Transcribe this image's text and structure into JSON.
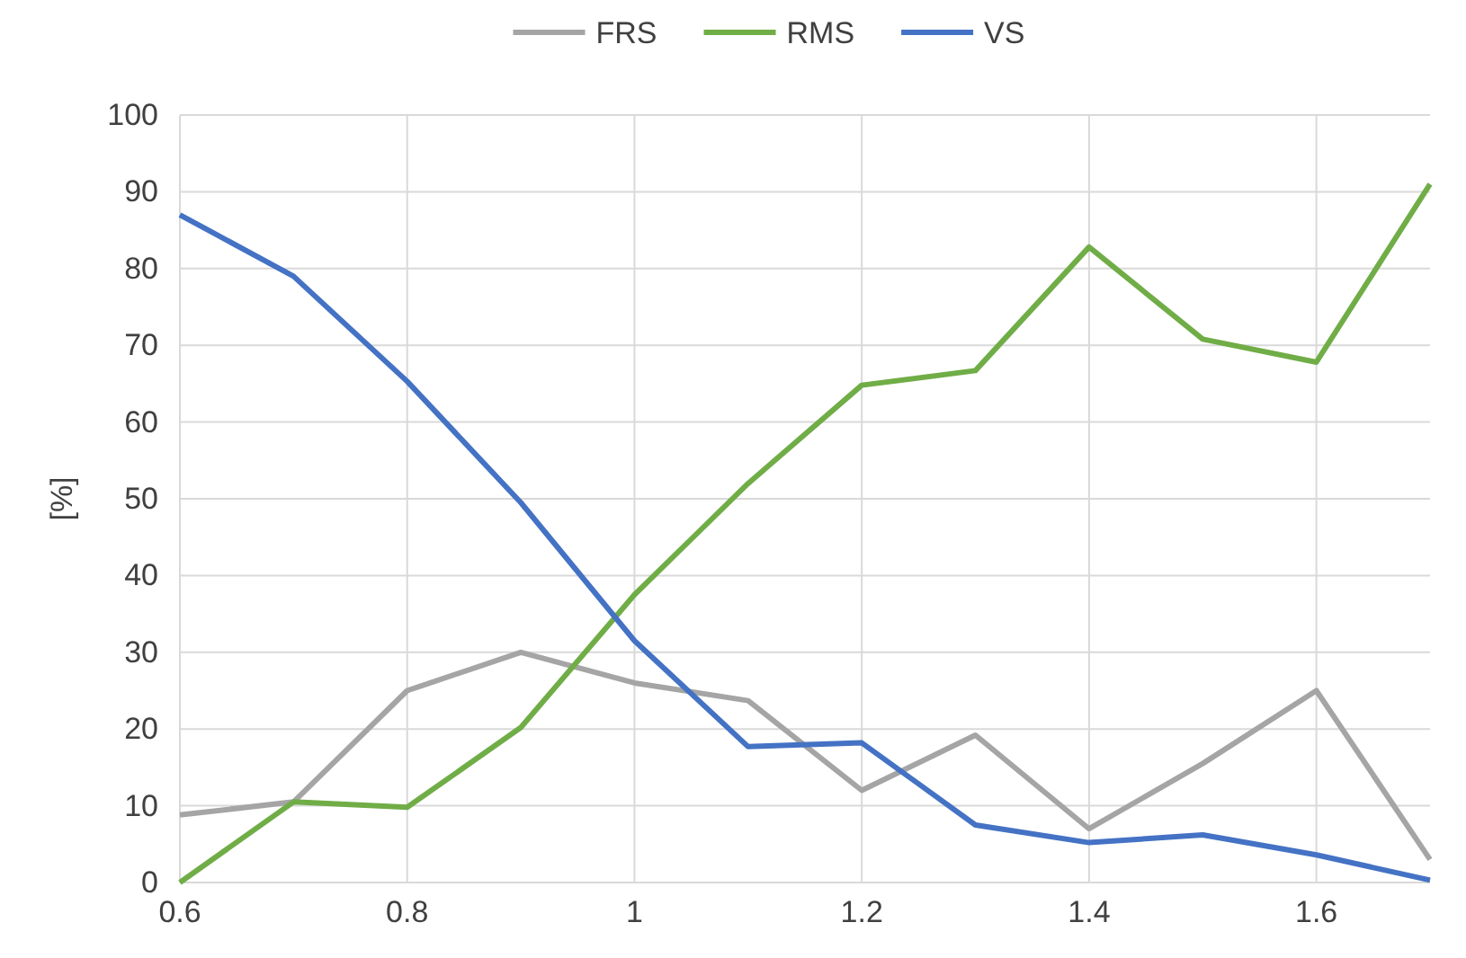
{
  "chart_data": {
    "type": "line",
    "ylabel": "[%]",
    "x": [
      0.6,
      0.7,
      0.8,
      0.9,
      1.0,
      1.1,
      1.2,
      1.3,
      1.4,
      1.5,
      1.6,
      1.7
    ],
    "series": [
      {
        "name": "FRS",
        "color": "#a5a5a5",
        "values": [
          8.8,
          10.5,
          25,
          30,
          26,
          23.7,
          12,
          19.2,
          7,
          15.5,
          25,
          3
        ]
      },
      {
        "name": "RMS",
        "color": "#70ad47",
        "values": [
          0,
          10.5,
          9.8,
          20.2,
          37.5,
          52,
          64.8,
          66.7,
          82.8,
          70.8,
          67.8,
          91
        ]
      },
      {
        "name": "VS",
        "color": "#4472c4",
        "values": [
          87,
          79,
          65.3,
          49.5,
          31.5,
          17.7,
          18.2,
          7.5,
          5.2,
          6.2,
          3.6,
          0.3
        ]
      }
    ],
    "xlim": [
      0.6,
      1.7
    ],
    "xticks": [
      0.6,
      0.8,
      1,
      1.2,
      1.4,
      1.6
    ],
    "ylim": [
      0,
      100
    ],
    "yticks": [
      0,
      10,
      20,
      30,
      40,
      50,
      60,
      70,
      80,
      90,
      100
    ],
    "grid": true,
    "legend": "top",
    "line_style": "solid",
    "marker": "none"
  }
}
